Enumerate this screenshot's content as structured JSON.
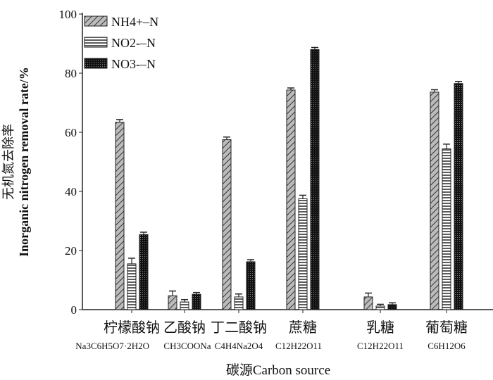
{
  "chart_data": {
    "type": "bar",
    "title": "",
    "xlabel": "碳源Carbon source",
    "ylabel_cn": "无机氮去除率",
    "ylabel": "Inorganic nitrogen removal rate/%",
    "ylim": [
      0,
      100
    ],
    "yticks": [
      0,
      20,
      40,
      60,
      80,
      100
    ],
    "categories": [
      "柠檬酸钠",
      "乙酸钠",
      "丁二酸钠",
      "蔗糖",
      "乳糖",
      "葡萄糖"
    ],
    "formulas": [
      "Na3C6H5O7·2H2O",
      "CH3COONa",
      "C4H4Na2O4",
      "C12H22O11",
      "C12H22O11",
      "C6H12O6"
    ],
    "legend_position": "top-left",
    "series": [
      {
        "name": "NH4+–N",
        "values": [
          63.4,
          4.7,
          57.5,
          74.3,
          4.3,
          73.6
        ],
        "errors": [
          0.9,
          1.6,
          0.9,
          0.7,
          1.3,
          0.8
        ],
        "pattern": "diagonal"
      },
      {
        "name": "NO2-–N",
        "values": [
          15.5,
          2.6,
          4.3,
          37.5,
          1.2,
          54.4
        ],
        "errors": [
          1.9,
          0.8,
          1.0,
          1.2,
          0.6,
          1.6
        ],
        "pattern": "horizontal"
      },
      {
        "name": "NO3-–N",
        "values": [
          25.4,
          5.2,
          16.2,
          88.0,
          1.7,
          76.5
        ],
        "errors": [
          0.8,
          0.6,
          0.7,
          0.7,
          0.6,
          0.7
        ],
        "pattern": "dots"
      }
    ]
  }
}
